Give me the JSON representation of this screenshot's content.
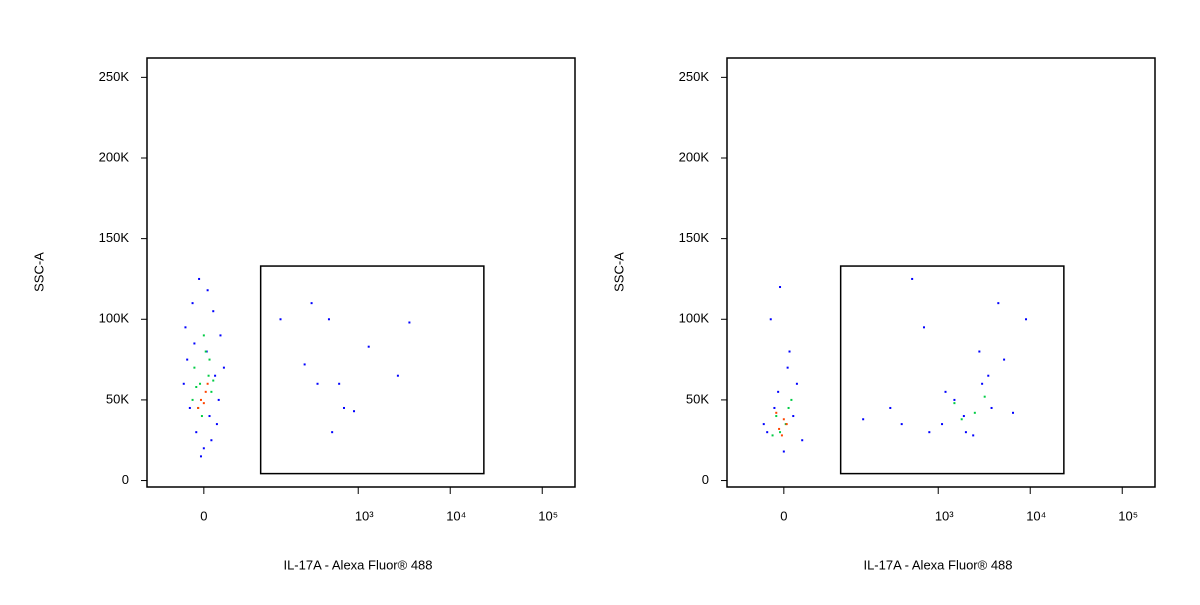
{
  "chart_data": [
    {
      "type": "scatter",
      "ylabel": "SSC-A",
      "xlabel": "IL-17A - Alexa Fluor® 488",
      "xscale": "biexponential",
      "xlim": [
        -82,
        227000
      ],
      "ylim": [
        -4000,
        262000
      ],
      "xticks": [
        0,
        {
          "value": 1000,
          "label": "10³"
        },
        {
          "value": 10000,
          "label": "10⁴"
        },
        {
          "value": 100000,
          "label": "10⁵"
        }
      ],
      "yticks": [
        0,
        {
          "value": 50000,
          "label": "50K"
        },
        {
          "value": 100000,
          "label": "100K"
        },
        {
          "value": 150000,
          "label": "150K"
        },
        {
          "value": 200000,
          "label": "200K"
        },
        {
          "value": 250000,
          "label": "250K"
        }
      ],
      "gate": {
        "x": [
          82,
          23200
        ],
        "y": [
          4300,
          133000
        ]
      },
      "series": [
        {
          "color": "#0000ff",
          "x": [
            -20,
            -12,
            -5,
            3,
            10,
            18,
            22,
            -15,
            -8,
            0,
            6,
            14,
            -22,
            -3,
            8,
            16,
            -10,
            4,
            12,
            -18,
            140,
            260,
            310,
            480,
            620,
            700,
            1300,
            2700,
            3600,
            900,
            520,
            360
          ],
          "values": [
            95000,
            110000,
            125000,
            80000,
            105000,
            90000,
            70000,
            45000,
            30000,
            20000,
            40000,
            35000,
            60000,
            15000,
            25000,
            50000,
            85000,
            118000,
            65000,
            75000,
            100000,
            72000,
            110000,
            100000,
            60000,
            45000,
            83000,
            65000,
            98000,
            43000,
            30000,
            60000
          ]
        },
        {
          "color": "#00cc44",
          "x": [
            -10,
            -4,
            2,
            8,
            -6,
            5,
            -12,
            0,
            10,
            -2,
            6,
            -8
          ],
          "values": [
            70000,
            60000,
            80000,
            55000,
            45000,
            65000,
            50000,
            90000,
            62000,
            40000,
            75000,
            58000
          ]
        },
        {
          "color": "#ff4400",
          "x": [
            -3,
            2,
            -6,
            4,
            0
          ],
          "values": [
            50000,
            55000,
            45000,
            60000,
            48000
          ]
        }
      ]
    },
    {
      "type": "scatter",
      "ylabel": "SSC-A",
      "xlabel": "IL-17A - Alexa Fluor® 488",
      "xscale": "biexponential",
      "xlim": [
        -82,
        227000
      ],
      "ylim": [
        -4000,
        262000
      ],
      "xticks": [
        0,
        {
          "value": 1000,
          "label": "10³"
        },
        {
          "value": 10000,
          "label": "10⁴"
        },
        {
          "value": 100000,
          "label": "10⁵"
        }
      ],
      "yticks": [
        0,
        {
          "value": 50000,
          "label": "50K"
        },
        {
          "value": 100000,
          "label": "100K"
        },
        {
          "value": 150000,
          "label": "150K"
        },
        {
          "value": 200000,
          "label": "200K"
        },
        {
          "value": 250000,
          "label": "250K"
        }
      ],
      "gate": {
        "x": [
          82,
          23200
        ],
        "y": [
          4300,
          133000
        ]
      },
      "series": [
        {
          "color": "#0000ff",
          "x": [
            -18,
            -10,
            -4,
            6,
            14,
            20,
            -14,
            0,
            10,
            -22,
            4,
            -6,
            150,
            300,
            520,
            800,
            1100,
            1500,
            1900,
            2400,
            3000,
            3800,
            4500,
            5200,
            6500,
            1200,
            2000,
            2800,
            700,
            400,
            9000,
            3500
          ],
          "values": [
            30000,
            45000,
            120000,
            80000,
            60000,
            25000,
            100000,
            18000,
            40000,
            35000,
            70000,
            55000,
            38000,
            45000,
            125000,
            30000,
            35000,
            50000,
            40000,
            28000,
            60000,
            45000,
            110000,
            75000,
            42000,
            55000,
            30000,
            80000,
            95000,
            35000,
            100000,
            65000
          ]
        },
        {
          "color": "#00cc44",
          "x": [
            -8,
            2,
            8,
            -4,
            1500,
            2500,
            3200,
            1800,
            -12,
            5
          ],
          "values": [
            40000,
            35000,
            50000,
            30000,
            48000,
            42000,
            52000,
            38000,
            28000,
            45000
          ]
        },
        {
          "color": "#ff4400",
          "x": [
            -5,
            0,
            -2,
            3,
            -8
          ],
          "values": [
            32000,
            38000,
            28000,
            35000,
            42000
          ]
        }
      ]
    }
  ]
}
